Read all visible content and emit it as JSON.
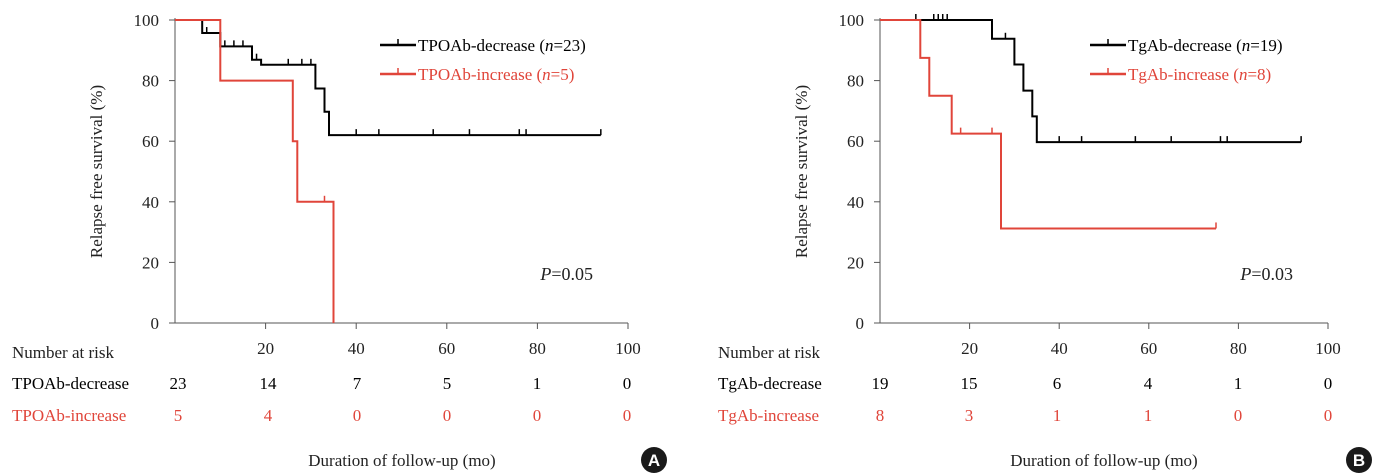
{
  "shared": {
    "xlabel": "Duration of follow-up (mo)",
    "ylabel": "Relapse free survival (%)",
    "risk_title": "Number at risk",
    "colors": {
      "black": "#000000",
      "red": "#e0453a",
      "badge": "#1a1a1a"
    }
  },
  "chart_data": [
    {
      "type": "line",
      "panel_label": "A",
      "xlim": [
        0,
        100
      ],
      "ylim": [
        0,
        100
      ],
      "xticks": [
        20,
        40,
        60,
        80,
        100
      ],
      "yticks": [
        0,
        20,
        40,
        60,
        80,
        100
      ],
      "pvalue": {
        "prefix": "P",
        "text": "=0.05"
      },
      "series": [
        {
          "name": "TPOAb-decrease",
          "n_label": {
            "pre": " (",
            "n": "n",
            "post": "=23)"
          },
          "color": "#000000",
          "steps": [
            [
              0,
              100
            ],
            [
              6,
              100
            ],
            [
              6,
              95.7
            ],
            [
              10,
              95.7
            ],
            [
              10,
              91.3
            ],
            [
              17,
              91.3
            ],
            [
              17,
              86.9
            ],
            [
              19,
              86.9
            ],
            [
              19,
              85.2
            ],
            [
              31,
              85.2
            ],
            [
              31,
              77.4
            ],
            [
              33,
              77.4
            ],
            [
              33,
              69.7
            ],
            [
              34,
              69.7
            ],
            [
              34,
              62
            ],
            [
              94,
              62
            ]
          ],
          "censor": [
            [
              7,
              95.7
            ],
            [
              11,
              91.3
            ],
            [
              13,
              91.3
            ],
            [
              15,
              91.3
            ],
            [
              18,
              86.9
            ],
            [
              25,
              85.2
            ],
            [
              28,
              85.2
            ],
            [
              30,
              85.2
            ],
            [
              40,
              62
            ],
            [
              45,
              62
            ],
            [
              57,
              62
            ],
            [
              65,
              62
            ],
            [
              76,
              62
            ],
            [
              77.5,
              62
            ],
            [
              94,
              62
            ]
          ],
          "risk": [
            "23",
            "14",
            "7",
            "5",
            "1",
            "0"
          ]
        },
        {
          "name": "TPOAb-increase",
          "n_label": {
            "pre": " (",
            "n": "n",
            "post": "=5)"
          },
          "color": "#e0453a",
          "steps": [
            [
              0,
              100
            ],
            [
              10,
              100
            ],
            [
              10,
              80
            ],
            [
              26,
              80
            ],
            [
              26,
              60
            ],
            [
              27,
              60
            ],
            [
              27,
              40
            ],
            [
              35,
              40
            ],
            [
              35,
              0
            ]
          ],
          "censor": [
            [
              33,
              40
            ]
          ],
          "risk": [
            "5",
            "4",
            "0",
            "0",
            "0",
            "0"
          ]
        }
      ]
    },
    {
      "type": "line",
      "panel_label": "B",
      "xlim": [
        0,
        100
      ],
      "ylim": [
        0,
        100
      ],
      "xticks": [
        20,
        40,
        60,
        80,
        100
      ],
      "yticks": [
        0,
        20,
        40,
        60,
        80,
        100
      ],
      "pvalue": {
        "prefix": "P",
        "text": "=0.03"
      },
      "series": [
        {
          "name": "TgAb-decrease",
          "n_label": {
            "pre": " (",
            "n": "n",
            "post": "=19)"
          },
          "color": "#000000",
          "steps": [
            [
              0,
              100
            ],
            [
              25,
              100
            ],
            [
              25,
              93.8
            ],
            [
              30,
              93.8
            ],
            [
              30,
              85.3
            ],
            [
              32,
              85.3
            ],
            [
              32,
              76.7
            ],
            [
              34,
              76.7
            ],
            [
              34,
              68.2
            ],
            [
              35,
              68.2
            ],
            [
              35,
              59.7
            ],
            [
              94,
              59.7
            ]
          ],
          "censor": [
            [
              8,
              100
            ],
            [
              12,
              100
            ],
            [
              13,
              100
            ],
            [
              14,
              100
            ],
            [
              15,
              100
            ],
            [
              28,
              93.8
            ],
            [
              40,
              59.7
            ],
            [
              45,
              59.7
            ],
            [
              57,
              59.7
            ],
            [
              65,
              59.7
            ],
            [
              76,
              59.7
            ],
            [
              77.5,
              59.7
            ],
            [
              94,
              59.7
            ]
          ],
          "risk": [
            "19",
            "15",
            "6",
            "4",
            "1",
            "0"
          ]
        },
        {
          "name": "TgAb-increase",
          "n_label": {
            "pre": " (",
            "n": "n",
            "post": "=8)"
          },
          "color": "#e0453a",
          "steps": [
            [
              0,
              100
            ],
            [
              9,
              100
            ],
            [
              9,
              87.5
            ],
            [
              11,
              87.5
            ],
            [
              11,
              75
            ],
            [
              16,
              75
            ],
            [
              16,
              62.5
            ],
            [
              27,
              62.5
            ],
            [
              27,
              31.2
            ],
            [
              75,
              31.2
            ]
          ],
          "censor": [
            [
              18,
              62.5
            ],
            [
              25,
              62.5
            ],
            [
              75,
              31.2
            ]
          ],
          "risk": [
            "8",
            "3",
            "1",
            "1",
            "0",
            "0"
          ]
        }
      ]
    }
  ]
}
